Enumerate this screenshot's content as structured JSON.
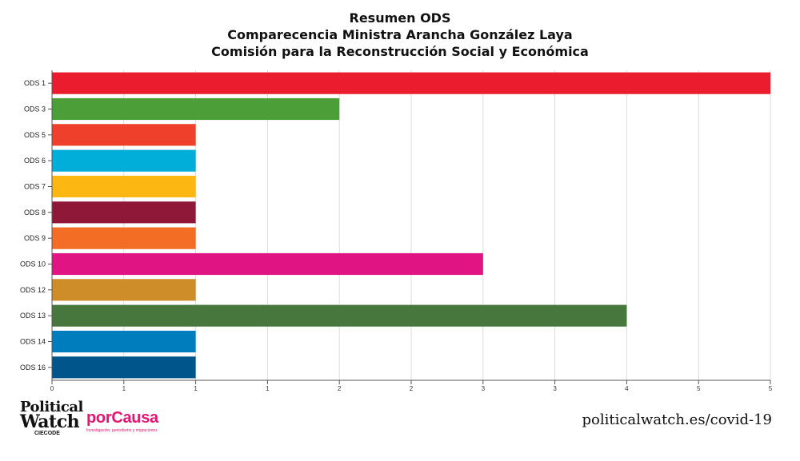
{
  "title_lines": [
    "Resumen ODS",
    "Comparecencia Ministra Arancha González Laya",
    "Comisión para la Reconstrucción Social y Económica"
  ],
  "chart_data": {
    "type": "bar",
    "orientation": "horizontal",
    "title": "Resumen ODS\nComparecencia Ministra Arancha González Laya\nComisión para la Reconstrucción Social y Económica",
    "categories": [
      "ODS 1",
      "ODS 3",
      "ODS 5",
      "ODS 6",
      "ODS 7",
      "ODS 8",
      "ODS 9",
      "ODS 10",
      "ODS 12",
      "ODS 13",
      "ODS 14",
      "ODS 16"
    ],
    "values": [
      5,
      2,
      1,
      1,
      1,
      1,
      1,
      3,
      1,
      4,
      1,
      1
    ],
    "colors": [
      "#eb1c2d",
      "#4c9f38",
      "#ef402b",
      "#00aed9",
      "#fdb713",
      "#8f1838",
      "#f36d25",
      "#e11484",
      "#cf8d2a",
      "#48773e",
      "#007dbc",
      "#00558a"
    ],
    "xlim": [
      0,
      5
    ],
    "x_ticks": [
      "0",
      "1",
      "1",
      "1",
      "2",
      "2",
      "3",
      "3",
      "4",
      "5",
      "5"
    ],
    "grid": true,
    "xlabel": "",
    "ylabel": ""
  },
  "footer": {
    "political_watch_line1": "Political",
    "political_watch_line2": "Watch",
    "political_watch_line3": "CIECODE",
    "porcausa_brand": "porCausa",
    "porcausa_tagline": "Investigación, periodismo y migraciones",
    "url": "politicalwatch.es/covid-19"
  }
}
